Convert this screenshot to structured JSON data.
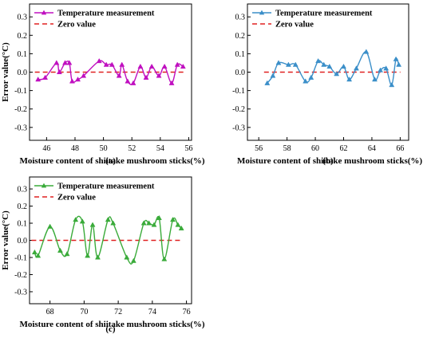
{
  "chart_data": [
    {
      "type": "line",
      "caption": "(a)",
      "xlabel": "Moisture content of shiitake mushroom sticks(%)",
      "ylabel": "Error value(°C)",
      "xlim": [
        44.8,
        56.2
      ],
      "ylim": [
        -0.37,
        0.37
      ],
      "xticks": [
        "46",
        "48",
        "50",
        "52",
        "54",
        "56"
      ],
      "yticks": [
        "-0.3",
        "-0.2",
        "-0.1",
        "0.0",
        "0.1",
        "0.2",
        "0.3"
      ],
      "color": "#c010c0",
      "legend": [
        "Temperature measurement",
        "Zero value"
      ],
      "zero_color": "#e02020",
      "series": [
        {
          "name": "Temperature measurement",
          "x": [
            45.4,
            45.9,
            46.7,
            46.9,
            47.3,
            47.6,
            47.8,
            48.2,
            48.6,
            49.7,
            50.2,
            50.6,
            51.1,
            51.3,
            51.7,
            52.1,
            52.6,
            53.0,
            53.4,
            53.9,
            54.3,
            54.8,
            55.2,
            55.6
          ],
          "y": [
            -0.04,
            -0.03,
            0.05,
            0.0,
            0.05,
            0.05,
            -0.05,
            -0.04,
            -0.02,
            0.06,
            0.04,
            0.04,
            -0.02,
            0.04,
            -0.05,
            -0.06,
            0.03,
            -0.03,
            0.03,
            -0.02,
            0.03,
            -0.06,
            0.04,
            0.03
          ]
        }
      ]
    },
    {
      "type": "line",
      "caption": "(b)",
      "xlabel": "Moisture content of shiitake mushroom sticks(%)",
      "ylabel": "",
      "xlim": [
        55.2,
        66.6
      ],
      "ylim": [
        -0.37,
        0.37
      ],
      "xticks": [
        "56",
        "58",
        "60",
        "62",
        "64",
        "66"
      ],
      "yticks": [
        "-0.3",
        "-0.2",
        "-0.1",
        "0.0",
        "0.1",
        "0.2",
        "0.3"
      ],
      "color": "#3b8fc9",
      "legend": [
        "Temperature measurement",
        "Zero value"
      ],
      "zero_color": "#e02020",
      "series": [
        {
          "name": "Temperature measurement",
          "x": [
            56.6,
            57.0,
            57.4,
            58.1,
            58.6,
            59.3,
            59.7,
            60.2,
            60.6,
            61.0,
            61.5,
            62.0,
            62.4,
            62.9,
            63.6,
            64.2,
            64.6,
            65.0,
            65.4,
            65.7,
            65.9
          ],
          "y": [
            -0.06,
            -0.02,
            0.05,
            0.04,
            0.04,
            -0.05,
            -0.03,
            0.06,
            0.04,
            0.03,
            -0.01,
            0.03,
            -0.04,
            0.02,
            0.11,
            -0.04,
            0.01,
            0.02,
            -0.07,
            0.07,
            0.04
          ]
        }
      ]
    },
    {
      "type": "line",
      "caption": "(c)",
      "xlabel": "Moisture content of shiitake mushroom sticks(%)",
      "ylabel": "Error value(°C)",
      "xlim": [
        66.8,
        76.3
      ],
      "ylim": [
        -0.37,
        0.37
      ],
      "xticks": [
        "68",
        "70",
        "72",
        "74",
        "76"
      ],
      "yticks": [
        "-0.3",
        "-0.2",
        "-0.1",
        "0.0",
        "0.1",
        "0.2",
        "0.3"
      ],
      "color": "#3aab3a",
      "legend": [
        "Temperature measurement",
        "Zero value"
      ],
      "zero_color": "#e02020",
      "series": [
        {
          "name": "Temperature measurement",
          "x": [
            67.1,
            67.3,
            68.0,
            68.6,
            69.0,
            69.5,
            69.9,
            70.2,
            70.5,
            70.8,
            71.4,
            71.7,
            72.5,
            72.9,
            73.5,
            73.8,
            74.1,
            74.4,
            74.7,
            75.2,
            75.5,
            75.7
          ],
          "y": [
            -0.07,
            -0.09,
            0.08,
            -0.06,
            -0.08,
            0.12,
            0.11,
            -0.09,
            0.09,
            -0.1,
            0.12,
            0.1,
            -0.1,
            -0.12,
            0.1,
            0.1,
            0.09,
            0.13,
            -0.11,
            0.12,
            0.09,
            0.07
          ]
        }
      ]
    }
  ]
}
